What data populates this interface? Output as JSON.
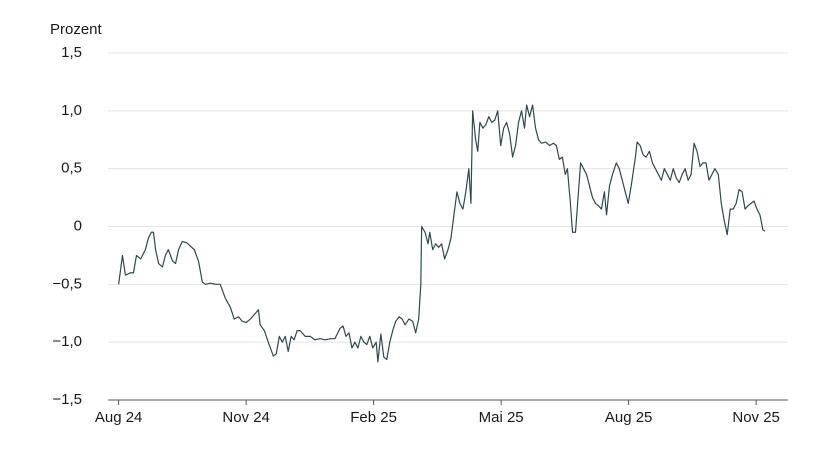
{
  "chart_data": {
    "type": "line",
    "y_label": "Prozent",
    "xlim": [
      -0.25,
      15.75
    ],
    "ylim": [
      -1.5,
      1.5
    ],
    "grid": true,
    "xticks": [
      {
        "value": 0,
        "label": "Aug 24"
      },
      {
        "value": 3,
        "label": "Nov 24"
      },
      {
        "value": 6,
        "label": "Feb 25"
      },
      {
        "value": 9,
        "label": "Mai 25"
      },
      {
        "value": 12,
        "label": "Aug 25"
      },
      {
        "value": 15,
        "label": "Nov 25"
      }
    ],
    "yticks": [
      {
        "value": -1.5,
        "label": "−1,5"
      },
      {
        "value": -1,
        "label": "−1,0"
      },
      {
        "value": -0.5,
        "label": "−0,5"
      },
      0,
      {
        "value": 0.5,
        "label": "0,5"
      },
      {
        "value": 1,
        "label": "1,0"
      },
      {
        "value": 1.5,
        "label": "1,5"
      }
    ],
    "series": [
      {
        "color": "#2f4a4a",
        "x": [
          0,
          0.09,
          0.16,
          0.28,
          0.35,
          0.42,
          0.52,
          0.63,
          0.7,
          0.77,
          0.82,
          0.87,
          0.94,
          1.03,
          1.1,
          1.17,
          1.27,
          1.34,
          1.41,
          1.5,
          1.6,
          1.69,
          1.78,
          1.88,
          1.97,
          2.04,
          2.16,
          2.28,
          2.39,
          2.51,
          2.63,
          2.72,
          2.82,
          2.91,
          3.0,
          3.1,
          3.22,
          3.29,
          3.33,
          3.43,
          3.52,
          3.57,
          3.64,
          3.71,
          3.78,
          3.85,
          3.92,
          3.99,
          4.06,
          4.13,
          4.2,
          4.27,
          4.39,
          4.51,
          4.62,
          4.74,
          4.86,
          4.98,
          5.09,
          5.21,
          5.28,
          5.35,
          5.42,
          5.49,
          5.56,
          5.63,
          5.7,
          5.77,
          5.84,
          5.91,
          5.98,
          6.06,
          6.1,
          6.17,
          6.24,
          6.31,
          6.38,
          6.45,
          6.52,
          6.6,
          6.67,
          6.74,
          6.83,
          6.92,
          6.99,
          7.06,
          7.11,
          7.13,
          7.21,
          7.28,
          7.32,
          7.39,
          7.46,
          7.53,
          7.6,
          7.67,
          7.75,
          7.82,
          7.89,
          7.96,
          8.03,
          8.1,
          8.17,
          8.24,
          8.29,
          8.33,
          8.4,
          8.45,
          8.5,
          8.57,
          8.64,
          8.71,
          8.78,
          8.85,
          8.92,
          8.99,
          9.06,
          9.13,
          9.2,
          9.27,
          9.34,
          9.41,
          9.48,
          9.55,
          9.6,
          9.67,
          9.74,
          9.81,
          9.88,
          9.95,
          10.05,
          10.14,
          10.23,
          10.3,
          10.37,
          10.44,
          10.51,
          10.56,
          10.63,
          10.68,
          10.75,
          10.8,
          10.87,
          10.94,
          11.01,
          11.08,
          11.15,
          11.22,
          11.29,
          11.36,
          11.43,
          11.48,
          11.55,
          11.62,
          11.71,
          11.78,
          11.85,
          11.92,
          11.99,
          12.06,
          12.16,
          12.2,
          12.27,
          12.34,
          12.41,
          12.49,
          12.56,
          12.63,
          12.7,
          12.77,
          12.84,
          12.91,
          12.98,
          13.05,
          13.12,
          13.19,
          13.26,
          13.33,
          13.4,
          13.47,
          13.54,
          13.61,
          13.68,
          13.75,
          13.82,
          13.89,
          13.96,
          14.03,
          14.11,
          14.18,
          14.25,
          14.32,
          14.39,
          14.46,
          14.53,
          14.6,
          14.67,
          14.74,
          14.81,
          14.88,
          14.95,
          15.02,
          15.09,
          15.16,
          15.21
        ],
        "values": [
          -0.5,
          -0.25,
          -0.42,
          -0.4,
          -0.4,
          -0.25,
          -0.28,
          -0.2,
          -0.1,
          -0.05,
          -0.05,
          -0.2,
          -0.32,
          -0.35,
          -0.25,
          -0.2,
          -0.3,
          -0.32,
          -0.2,
          -0.13,
          -0.14,
          -0.17,
          -0.2,
          -0.3,
          -0.48,
          -0.5,
          -0.49,
          -0.5,
          -0.5,
          -0.62,
          -0.7,
          -0.8,
          -0.78,
          -0.82,
          -0.83,
          -0.8,
          -0.75,
          -0.72,
          -0.85,
          -0.9,
          -1.0,
          -1.05,
          -1.12,
          -1.1,
          -0.95,
          -1.0,
          -0.95,
          -1.08,
          -0.95,
          -0.98,
          -0.9,
          -0.9,
          -0.95,
          -0.95,
          -0.98,
          -0.97,
          -0.98,
          -0.97,
          -0.97,
          -0.88,
          -0.86,
          -0.95,
          -0.92,
          -1.05,
          -1.0,
          -1.05,
          -0.95,
          -1.0,
          -1.02,
          -0.95,
          -1.05,
          -1.0,
          -1.17,
          -0.93,
          -1.13,
          -1.15,
          -1.0,
          -0.9,
          -0.82,
          -0.78,
          -0.8,
          -0.85,
          -0.8,
          -0.82,
          -0.92,
          -0.8,
          -0.5,
          0.0,
          -0.05,
          -0.15,
          -0.05,
          -0.2,
          -0.15,
          -0.18,
          -0.15,
          -0.28,
          -0.2,
          -0.1,
          0.1,
          0.3,
          0.2,
          0.15,
          0.3,
          0.5,
          0.2,
          1.0,
          0.75,
          0.65,
          0.9,
          0.85,
          0.88,
          0.95,
          0.9,
          0.92,
          1.0,
          0.7,
          0.85,
          0.9,
          0.8,
          0.6,
          0.7,
          0.9,
          1.0,
          0.85,
          1.05,
          0.95,
          1.05,
          0.85,
          0.75,
          0.72,
          0.73,
          0.7,
          0.72,
          0.7,
          0.58,
          0.6,
          0.45,
          0.5,
          0.2,
          -0.05,
          -0.05,
          0.2,
          0.55,
          0.5,
          0.45,
          0.35,
          0.25,
          0.2,
          0.18,
          0.15,
          0.3,
          0.1,
          0.35,
          0.45,
          0.55,
          0.5,
          0.4,
          0.3,
          0.2,
          0.35,
          0.6,
          0.73,
          0.7,
          0.62,
          0.6,
          0.65,
          0.55,
          0.5,
          0.45,
          0.4,
          0.5,
          0.45,
          0.4,
          0.5,
          0.42,
          0.38,
          0.45,
          0.5,
          0.4,
          0.45,
          0.72,
          0.65,
          0.52,
          0.55,
          0.55,
          0.4,
          0.45,
          0.5,
          0.45,
          0.2,
          0.05,
          -0.07,
          0.15,
          0.15,
          0.2,
          0.32,
          0.3,
          0.15,
          0.18,
          0.2,
          0.22,
          0.15,
          0.1,
          -0.03,
          -0.04
        ]
      }
    ]
  }
}
